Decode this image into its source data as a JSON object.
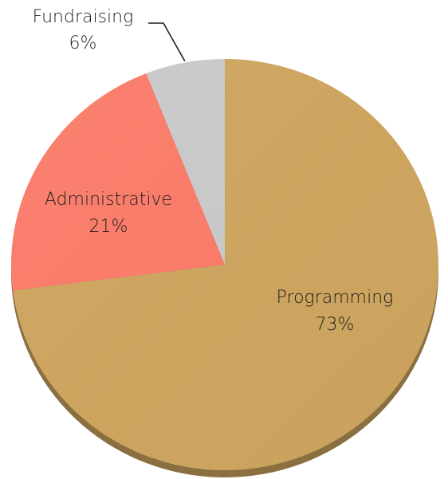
{
  "chart_data": {
    "type": "pie",
    "title": "",
    "legend": "none",
    "start": "12 o'clock, clockwise",
    "slices": [
      {
        "name": "Programming",
        "value": 73,
        "label": "Programming",
        "percent_label": "73%",
        "color": "#cda45e",
        "side_color": "#8a7040"
      },
      {
        "name": "Administrative",
        "value": 21,
        "label": "Administrative",
        "percent_label": "21%",
        "color": "#fa7a68",
        "side_color": "#b0584a"
      },
      {
        "name": "Fundraising",
        "value": 6,
        "label": "Fundraising",
        "percent_label": "6%",
        "color": "#c8c8c8",
        "side_color": "#8e8e8e"
      }
    ]
  }
}
